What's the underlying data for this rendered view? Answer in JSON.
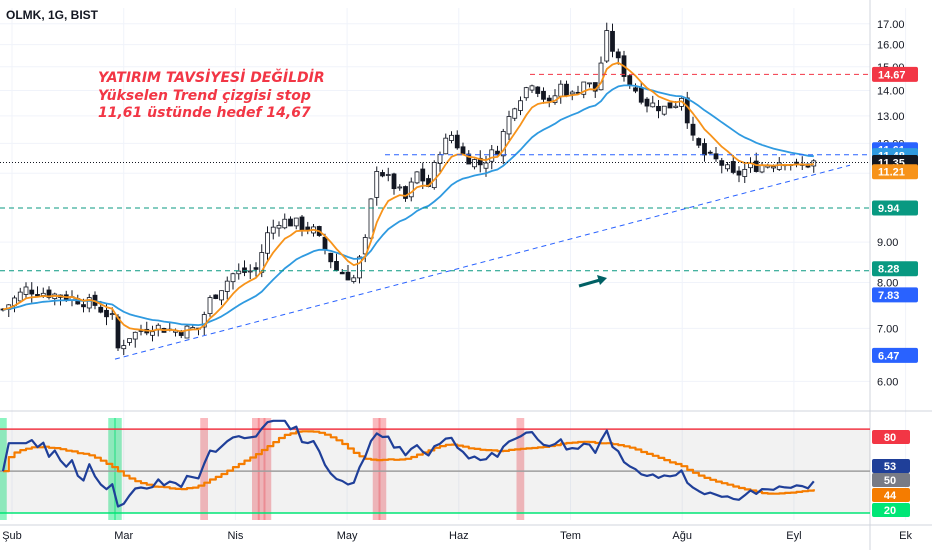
{
  "symbol": "OLMK, 1G, BIST",
  "annotation": {
    "line1": "YATIRIM TAVSİYESİ DEĞİLDİR",
    "line2": "Yükselen Trend çizgisi stop",
    "line3": "11,61 üstünde hedef 14,67"
  },
  "colors": {
    "bull_candle": "#ffffff",
    "bear_candle": "#131722",
    "ema_fast": "#f7931a",
    "ema_slow": "#2f9ae0",
    "rsi": "#1f3f99",
    "rsi_ma": "#f57c00",
    "level_red": "#f23645",
    "level_green": "#089981",
    "trend": "#2962ff",
    "arrow": "#006064"
  },
  "chart_data": [
    {
      "type": "candlestick",
      "x_axis": {
        "labels": [
          "Şub",
          "Mar",
          "Nis",
          "May",
          "Haz",
          "Tem",
          "Ağu",
          "Eyl",
          "Ek"
        ]
      },
      "y_axis": {
        "scale": "log",
        "ticks": [
          "6.00",
          "7.00",
          "8.00",
          "9.00",
          "11.00",
          "12.00",
          "13.00",
          "14.00",
          "15.00",
          "16.00",
          "17.00"
        ],
        "range": [
          5.6,
          17.8
        ]
      },
      "price_levels": [
        {
          "value": 14.67,
          "label": "14.67",
          "color": "#f23645",
          "style": "dashed"
        },
        {
          "value": 11.61,
          "label": "11.61",
          "color": "#2962ff",
          "style": "dashed"
        },
        {
          "value": 11.35,
          "label": "11.35",
          "color": "#131722",
          "style": "dotted"
        },
        {
          "value": 9.94,
          "label": "9.94",
          "color": "#089981",
          "style": "dashed"
        },
        {
          "value": 8.28,
          "label": "8.28",
          "color": "#089981",
          "style": "dashed"
        }
      ],
      "indicator_badges": [
        {
          "value": 11.48,
          "label": "11.48",
          "color": "#2f9ae0"
        },
        {
          "value": 11.21,
          "label": "11.21",
          "color": "#f7931a"
        },
        {
          "value": 7.83,
          "label": "7.83",
          "color": "#2962ff"
        },
        {
          "value": 6.47,
          "label": "6.47",
          "color": "#2962ff"
        }
      ],
      "trendline": {
        "from": {
          "day": 20,
          "price": 6.4
        },
        "to": {
          "day": 141,
          "price": 11.0
        }
      },
      "price_path": [
        [
          0,
          7.4
        ],
        [
          4,
          7.85
        ],
        [
          8,
          7.75
        ],
        [
          12,
          7.65
        ],
        [
          16,
          7.5
        ],
        [
          19,
          7.2
        ],
        [
          20,
          6.6
        ],
        [
          22,
          6.85
        ],
        [
          26,
          7.05
        ],
        [
          30,
          6.95
        ],
        [
          34,
          7.0
        ],
        [
          36,
          7.6
        ],
        [
          40,
          8.2
        ],
        [
          44,
          8.3
        ],
        [
          46,
          9.2
        ],
        [
          48,
          9.6
        ],
        [
          51,
          9.5
        ],
        [
          54,
          9.3
        ],
        [
          56,
          8.8
        ],
        [
          58,
          8.3
        ],
        [
          61,
          8.1
        ],
        [
          63,
          9.0
        ],
        [
          65,
          11.2
        ],
        [
          67,
          10.8
        ],
        [
          70,
          10.2
        ],
        [
          72,
          11.0
        ],
        [
          74,
          10.6
        ],
        [
          76,
          11.8
        ],
        [
          78,
          12.3
        ],
        [
          80,
          11.6
        ],
        [
          83,
          11.3
        ],
        [
          86,
          11.8
        ],
        [
          89,
          13.5
        ],
        [
          92,
          14.4
        ],
        [
          95,
          13.4
        ],
        [
          97,
          14.2
        ],
        [
          99,
          13.8
        ],
        [
          101,
          14.4
        ],
        [
          103,
          14.0
        ],
        [
          105,
          16.4
        ],
        [
          107,
          15.2
        ],
        [
          109,
          14.3
        ],
        [
          112,
          13.5
        ],
        [
          115,
          13.3
        ],
        [
          117,
          13.5
        ],
        [
          118,
          13.8
        ],
        [
          120,
          12.1
        ],
        [
          122,
          11.6
        ],
        [
          125,
          11.3
        ],
        [
          127,
          10.9
        ],
        [
          130,
          11.2
        ],
        [
          133,
          11.3
        ],
        [
          136,
          11.45
        ],
        [
          138,
          11.2
        ],
        [
          141,
          11.35
        ]
      ],
      "series": [
        {
          "name": "",
          "kind": "ema_fast"
        },
        {
          "name": "",
          "kind": "ema_slow"
        }
      ]
    },
    {
      "type": "line",
      "indicator": "RSI",
      "y_axis": {
        "range": [
          15,
          88
        ]
      },
      "levels": [
        {
          "value": 80,
          "label": "80",
          "color": "#f23645"
        },
        {
          "value": 50,
          "label": "50",
          "color": "#9e9e9e"
        },
        {
          "value": 20,
          "label": "20",
          "color": "#00e676"
        }
      ],
      "value_badges": [
        {
          "value": 53,
          "label": "53",
          "color": "#1f3f99"
        },
        {
          "value": 44,
          "label": "44",
          "color": "#f57c00"
        }
      ],
      "highlight_days": {
        "overbought": [
          35,
          44,
          45,
          46,
          65,
          66,
          90
        ],
        "oversold": [
          0,
          19,
          20
        ]
      }
    }
  ]
}
